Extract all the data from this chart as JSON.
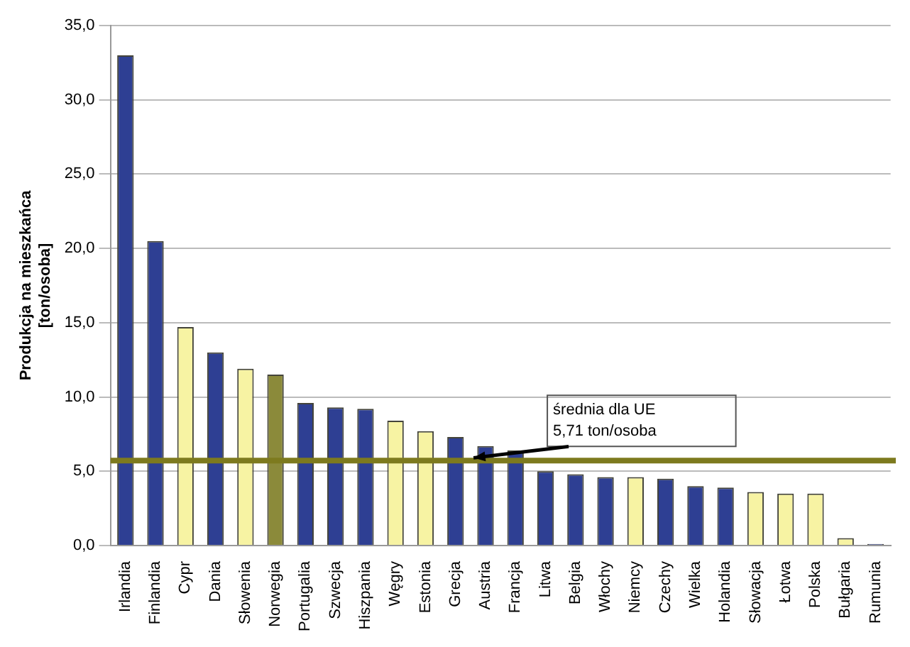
{
  "chart_data": {
    "type": "bar",
    "ylabel": "Produkcja na mieszkańca\n[ton/osoba]",
    "categories": [
      "Irlandia",
      "Finlandia",
      "Cypr",
      "Dania",
      "Słowenia",
      "Norwegia",
      "Portugalia",
      "Szwecja",
      "Hiszpania",
      "Węgry",
      "Estonia",
      "Grecja",
      "Austria",
      "Francja",
      "Litwa",
      "Belgia",
      "Włochy",
      "Niemcy",
      "Czechy",
      "Wielka",
      "Holandia",
      "Słowacja",
      "Łotwa",
      "Polska",
      "Bułgaria",
      "Rumunia"
    ],
    "values": [
      33.0,
      20.5,
      14.7,
      13.0,
      11.9,
      11.5,
      9.6,
      9.3,
      9.2,
      8.4,
      7.7,
      7.3,
      6.7,
      6.4,
      5.0,
      4.8,
      4.6,
      4.6,
      4.5,
      4.0,
      3.9,
      3.6,
      3.5,
      3.5,
      0.5,
      0.1
    ],
    "colors": [
      "#2e3f93",
      "#2e3f93",
      "#f7f3a3",
      "#2e3f93",
      "#f7f3a3",
      "#8b8a3a",
      "#2e3f93",
      "#2e3f93",
      "#2e3f93",
      "#f7f3a3",
      "#f7f3a3",
      "#2e3f93",
      "#2e3f93",
      "#2e3f93",
      "#2e3f93",
      "#2e3f93",
      "#2e3f93",
      "#f7f3a3",
      "#2e3f93",
      "#2e3f93",
      "#2e3f93",
      "#f7f3a3",
      "#f7f3a3",
      "#f7f3a3",
      "#f7f3a3",
      "#2e3f93"
    ],
    "ylim": [
      0,
      35
    ],
    "yticks": [
      {
        "value": 0,
        "label": "0,0"
      },
      {
        "value": 5,
        "label": "5,0"
      },
      {
        "value": 10,
        "label": "10,0"
      },
      {
        "value": 15,
        "label": "15,0"
      },
      {
        "value": 20,
        "label": "20,0"
      },
      {
        "value": 25,
        "label": "25,0"
      },
      {
        "value": 30,
        "label": "30,0"
      },
      {
        "value": 35,
        "label": "35,0"
      }
    ],
    "grid": "y",
    "legend": false,
    "ref_lines": [
      {
        "axis": "y",
        "value": 5.71,
        "label": "średnia dla UE\n5,71 ton/osoba",
        "color": "#7d7a1e"
      }
    ]
  }
}
